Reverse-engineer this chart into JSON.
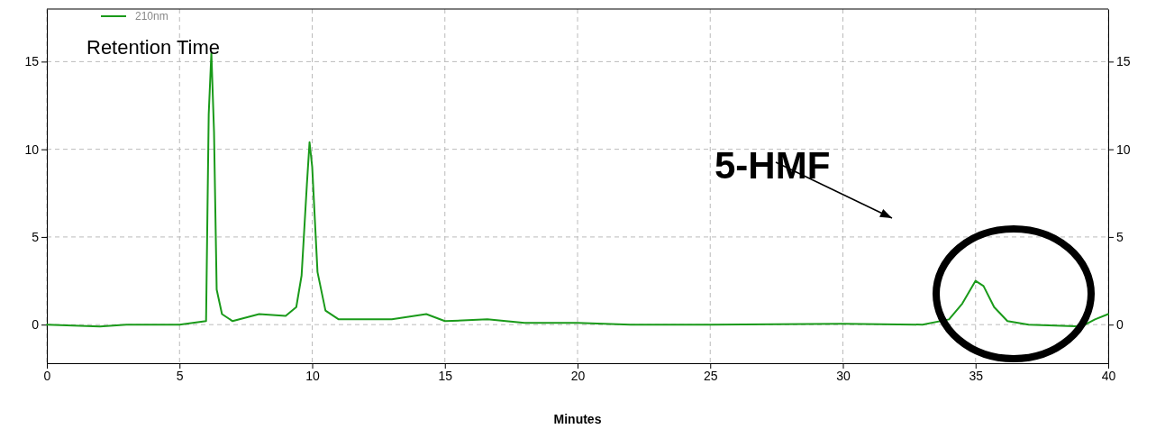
{
  "chart_data": {
    "type": "line",
    "xlabel": "Minutes",
    "legend": "top left",
    "grid": true,
    "xlim": [
      0,
      40
    ],
    "xticks": [
      0,
      5,
      10,
      15,
      20,
      25,
      30,
      35,
      40
    ],
    "ylim": [
      -2.2,
      18
    ],
    "yticks": [
      0,
      5,
      10,
      15
    ],
    "y2lim": [
      -2.2,
      18
    ],
    "y2ticks": [
      0,
      5,
      10,
      15
    ],
    "annotations": [
      "Retention Time",
      "5-HMF"
    ],
    "series": [
      {
        "name": "210nm",
        "color": "#1a9a1a",
        "x": [
          0,
          2,
          3,
          5,
          5.5,
          6.0,
          6.1,
          6.2,
          6.3,
          6.4,
          6.6,
          7,
          8,
          9,
          9.4,
          9.6,
          9.8,
          9.9,
          10.0,
          10.2,
          10.5,
          11,
          13,
          14.3,
          15,
          16.6,
          18,
          20,
          22,
          25,
          30,
          33,
          34,
          34.5,
          35,
          35.3,
          35.7,
          36.2,
          37,
          39,
          39.5,
          40
        ],
        "values": [
          0,
          -0.1,
          0,
          0,
          0.1,
          0.2,
          12,
          15.5,
          11,
          2,
          0.6,
          0.2,
          0.6,
          0.5,
          1,
          2.8,
          8,
          10.4,
          9,
          3,
          0.8,
          0.3,
          0.3,
          0.6,
          0.2,
          0.3,
          0.1,
          0.1,
          0,
          0,
          0.05,
          0,
          0.3,
          1.2,
          2.5,
          2.2,
          1,
          0.2,
          0,
          -0.1,
          0.3,
          0.6
        ]
      }
    ]
  }
}
